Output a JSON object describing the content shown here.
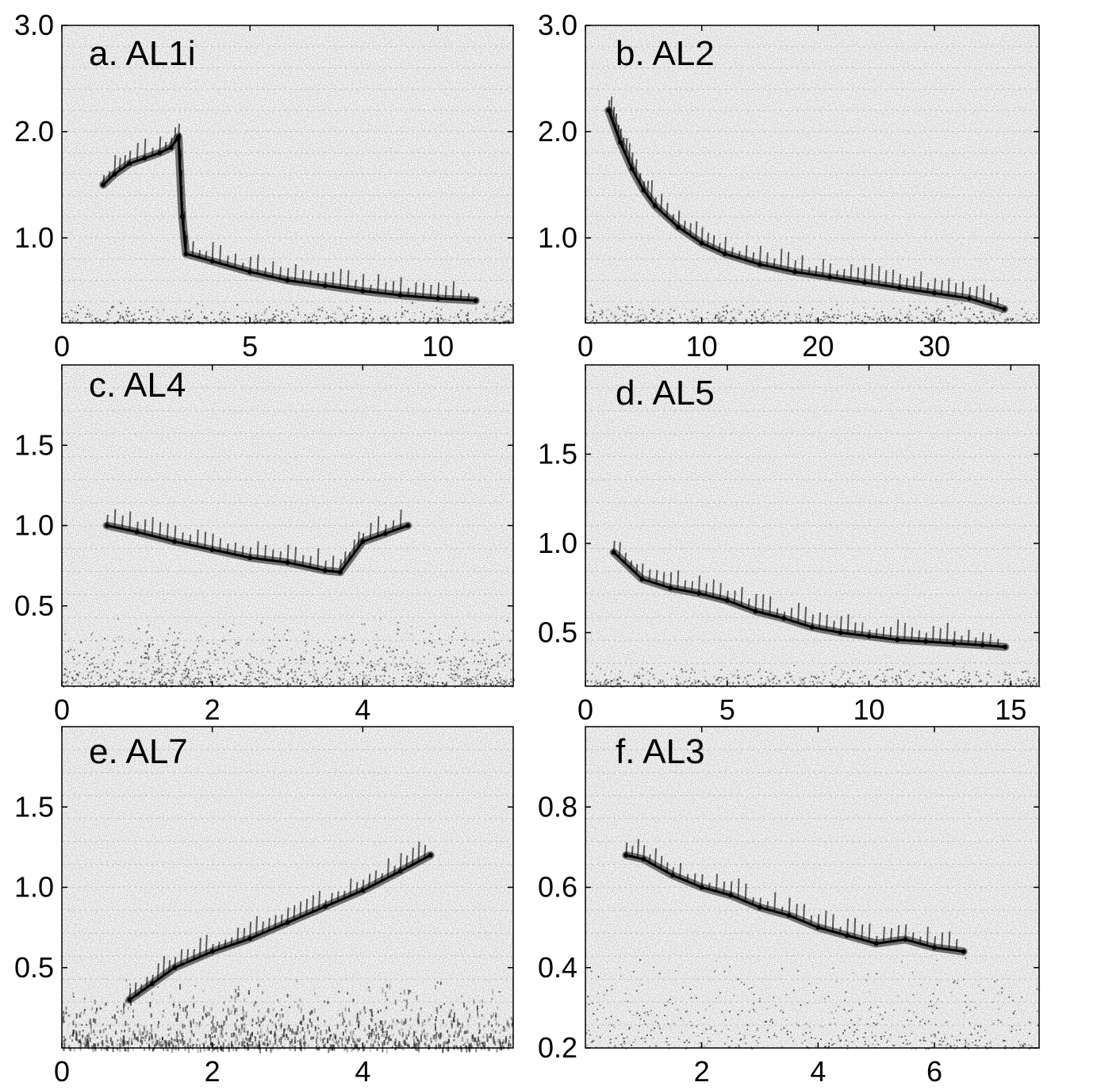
{
  "figure": {
    "panels_count": 6
  },
  "chart_data": [
    {
      "type": "scatter",
      "title": "a. AL1i",
      "xlim": [
        0,
        12
      ],
      "ylim": [
        0.2,
        3.0
      ],
      "xticks": [
        0,
        5,
        10
      ],
      "xtick_labels": [
        "0",
        "5",
        "10"
      ],
      "yticks": [
        1.0,
        2.0,
        3.0
      ],
      "ytick_labels": [
        "1.0",
        "2.0",
        "3.0"
      ],
      "grid": false,
      "series": [
        {
          "x": [
            1.1,
            1.4,
            1.8,
            2.2,
            2.6,
            2.9,
            3.1,
            3.2,
            3.3,
            4.0,
            5.0,
            6.0,
            7.0,
            8.0,
            9.0,
            10.0,
            11.0
          ],
          "y": [
            1.5,
            1.6,
            1.7,
            1.75,
            1.8,
            1.85,
            1.95,
            1.2,
            0.85,
            0.78,
            0.68,
            0.6,
            0.55,
            0.5,
            0.46,
            0.43,
            0.41
          ]
        }
      ]
    },
    {
      "type": "scatter",
      "title": "b. AL2",
      "xlim": [
        0,
        39
      ],
      "ylim": [
        0.2,
        3.0
      ],
      "xticks": [
        0,
        10,
        20,
        30
      ],
      "xtick_labels": [
        "0",
        "10",
        "20",
        "30"
      ],
      "yticks": [
        1.0,
        2.0,
        3.0
      ],
      "ytick_labels": [
        "1.0",
        "2.0",
        "3.0"
      ],
      "grid": false,
      "series": [
        {
          "x": [
            2,
            3,
            4,
            5,
            6,
            8,
            10,
            12,
            15,
            18,
            21,
            24,
            27,
            30,
            33,
            36
          ],
          "y": [
            2.2,
            1.9,
            1.65,
            1.45,
            1.3,
            1.1,
            0.95,
            0.85,
            0.75,
            0.68,
            0.63,
            0.58,
            0.53,
            0.48,
            0.43,
            0.33
          ]
        }
      ]
    },
    {
      "type": "scatter",
      "title": "c. AL4",
      "xlim": [
        0,
        6
      ],
      "ylim": [
        0,
        2.0
      ],
      "xticks": [
        0,
        2,
        4
      ],
      "xtick_labels": [
        "0",
        "2",
        "4"
      ],
      "yticks": [
        0.5,
        1.0,
        1.5
      ],
      "ytick_labels": [
        "0.5",
        "1.0",
        "1.5"
      ],
      "grid": false,
      "series": [
        {
          "x": [
            0.6,
            1.0,
            1.5,
            2.0,
            2.5,
            3.0,
            3.5,
            3.7,
            4.0,
            4.3,
            4.6
          ],
          "y": [
            1.0,
            0.96,
            0.9,
            0.85,
            0.8,
            0.77,
            0.72,
            0.71,
            0.9,
            0.95,
            1.0
          ]
        }
      ]
    },
    {
      "type": "scatter",
      "title": "d. AL5",
      "xlim": [
        0,
        16
      ],
      "ylim": [
        0.2,
        2.0
      ],
      "xticks": [
        0,
        5,
        10,
        15
      ],
      "xtick_labels": [
        "0",
        "5",
        "10",
        "15"
      ],
      "yticks": [
        0.5,
        1.0,
        1.5
      ],
      "ytick_labels": [
        "0.5",
        "1.0",
        "1.5"
      ],
      "grid": false,
      "series": [
        {
          "x": [
            1.0,
            2.0,
            3.0,
            4.0,
            5.0,
            6.0,
            7.0,
            8.0,
            9.0,
            10.0,
            11.0,
            12.0,
            13.0,
            14.0,
            14.8
          ],
          "y": [
            0.95,
            0.8,
            0.75,
            0.72,
            0.68,
            0.62,
            0.58,
            0.53,
            0.5,
            0.48,
            0.46,
            0.45,
            0.44,
            0.43,
            0.42
          ]
        }
      ]
    },
    {
      "type": "scatter",
      "title": "e. AL7",
      "xlim": [
        0,
        6
      ],
      "ylim": [
        0,
        2.0
      ],
      "xticks": [
        0,
        2,
        4
      ],
      "xtick_labels": [
        "0",
        "2",
        "4"
      ],
      "yticks": [
        0.5,
        1.0,
        1.5
      ],
      "ytick_labels": [
        "0.5",
        "1.0",
        "1.5"
      ],
      "grid": false,
      "series": [
        {
          "x": [
            0.9,
            1.2,
            1.5,
            2.0,
            2.5,
            3.0,
            3.5,
            4.0,
            4.5,
            4.9
          ],
          "y": [
            0.3,
            0.4,
            0.5,
            0.6,
            0.68,
            0.78,
            0.88,
            0.98,
            1.1,
            1.2
          ]
        }
      ]
    },
    {
      "type": "scatter",
      "title": "f. AL3",
      "xlim": [
        0,
        7.8
      ],
      "ylim": [
        0.2,
        1.0
      ],
      "xticks": [
        2,
        4,
        6
      ],
      "xtick_labels": [
        "2",
        "4",
        "6"
      ],
      "yticks": [
        0.2,
        0.4,
        0.6,
        0.8
      ],
      "ytick_labels": [
        "0.2",
        "0.4",
        "0.6",
        "0.8"
      ],
      "grid": false,
      "series": [
        {
          "x": [
            0.7,
            1.0,
            1.5,
            2.0,
            2.5,
            3.0,
            3.5,
            4.0,
            4.5,
            5.0,
            5.5,
            6.0,
            6.5
          ],
          "y": [
            0.68,
            0.67,
            0.63,
            0.6,
            0.58,
            0.55,
            0.53,
            0.5,
            0.48,
            0.46,
            0.47,
            0.45,
            0.44
          ]
        }
      ]
    }
  ]
}
